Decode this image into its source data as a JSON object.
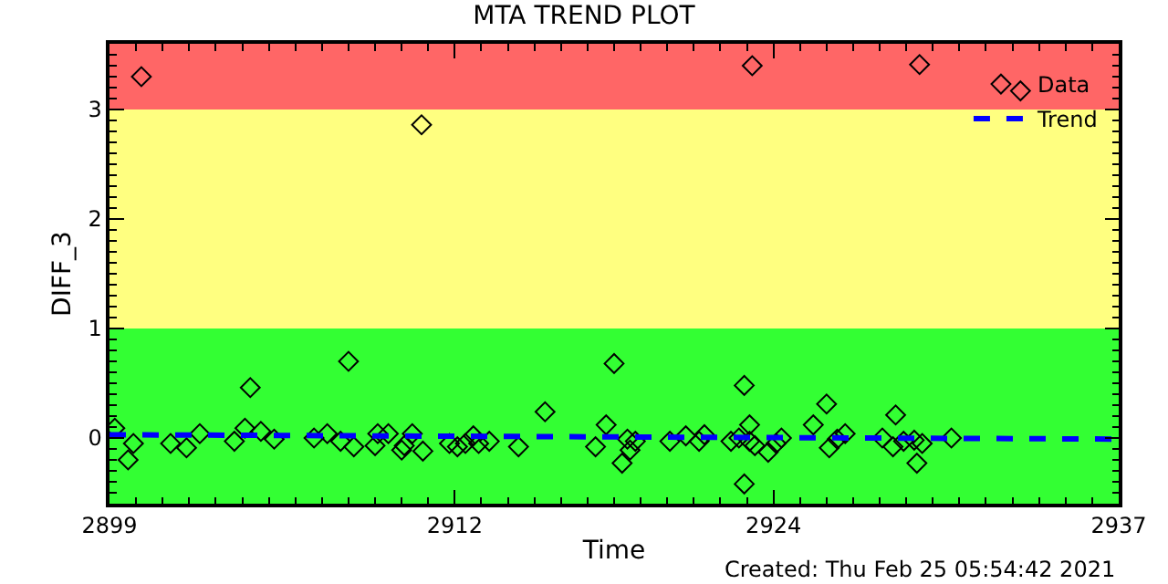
{
  "chart_data": {
    "type": "scatter",
    "title": "MTA TREND PLOT",
    "xlabel": "Time",
    "ylabel": "DIFF_3",
    "annotations": [
      "Created: Thu Feb 25 05:54:42 2021"
    ],
    "xlim": [
      2899,
      2937
    ],
    "xticks": [
      2899,
      2912,
      2924,
      2937
    ],
    "ylim": [
      -0.6,
      3.6
    ],
    "yticks": [
      0,
      1,
      2,
      3
    ],
    "grid": false,
    "legend": "top right",
    "marker": "diamond",
    "bands": [
      {
        "axis": "y",
        "from": -0.6,
        "to": 1,
        "color": "#33ff33"
      },
      {
        "axis": "y",
        "from": 1,
        "to": 3,
        "color": "#ffff80"
      },
      {
        "axis": "y",
        "from": 3,
        "to": 3.6,
        "color": "#ff6666"
      }
    ],
    "series": [
      {
        "name": "Data",
        "color": "#000000",
        "x": [
          2900.2,
          2910.75,
          2899.2,
          2899.7,
          2899.9,
          2901.3,
          2901.9,
          2902.4,
          2903.7,
          2904.1,
          2904.3,
          2904.7,
          2905.2,
          2906.7,
          2907.2,
          2907.7,
          2908.0,
          2908.2,
          2909.0,
          2909.1,
          2909.5,
          2910.0,
          2910.1,
          2910.4,
          2910.8,
          2911.8,
          2912.1,
          2912.4,
          2912.7,
          2912.9,
          2913.3,
          2914.4,
          2915.4,
          2917.3,
          2923.2,
          2929.5,
          2933.3,
          2918.0,
          2917.7,
          2918.3,
          2918.5,
          2918.6,
          2918.8,
          2920.1,
          2920.7,
          2921.2,
          2921.4,
          2922.4,
          2922.7,
          2922.9,
          2923.1,
          2922.9,
          2923.1,
          2923.3,
          2923.8,
          2924.1,
          2924.3,
          2925.5,
          2926.0,
          2926.1,
          2926.4,
          2926.7,
          2928.1,
          2928.6,
          2928.5,
          2928.9,
          2929.3,
          2929.4,
          2929.6,
          2930.7
        ],
        "values": [
          3.3,
          2.86,
          0.09,
          -0.2,
          -0.05,
          -0.05,
          -0.09,
          0.04,
          -0.03,
          0.09,
          0.46,
          0.06,
          -0.01,
          0.0,
          0.04,
          -0.03,
          0.7,
          -0.08,
          -0.07,
          0.04,
          0.04,
          -0.11,
          -0.07,
          0.04,
          -0.12,
          -0.05,
          -0.08,
          -0.05,
          0.02,
          -0.05,
          -0.03,
          -0.08,
          0.24,
          -0.08,
          3.4,
          3.41,
          3.17,
          0.68,
          0.12,
          -0.23,
          -0.01,
          -0.11,
          -0.03,
          -0.03,
          0.02,
          -0.03,
          0.03,
          -0.03,
          0.0,
          0.48,
          0.12,
          -0.42,
          -0.03,
          -0.07,
          -0.13,
          -0.05,
          0.0,
          0.12,
          0.31,
          -0.09,
          -0.01,
          0.04,
          0.0,
          0.21,
          -0.08,
          -0.03,
          -0.02,
          -0.23,
          -0.05,
          0.0
        ]
      },
      {
        "name": "Trend",
        "type": "line",
        "color": "#0000ff",
        "line_style": "dashed",
        "marker": "none",
        "x": [
          2899,
          2937
        ],
        "values": [
          0.03,
          -0.01
        ]
      }
    ]
  }
}
